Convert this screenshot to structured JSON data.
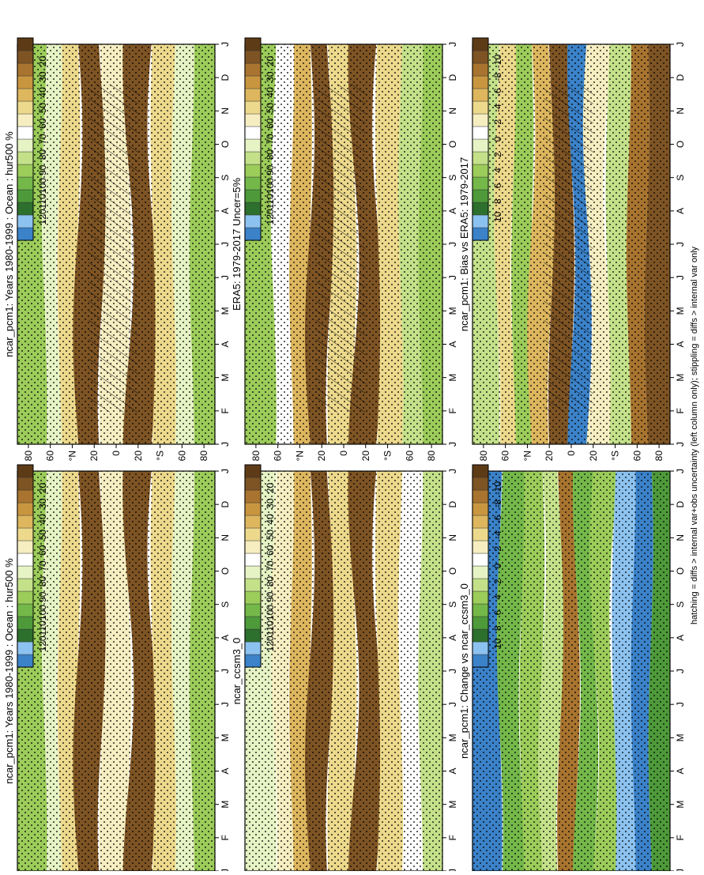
{
  "figure": {
    "footnote": "hatching = diffs > internal var+obs uncertainty (left column only); stippling = diffs > internal var only"
  },
  "palettes": {
    "field": [
      "#3b82c9",
      "#8cc2ef",
      "#2d6f2d",
      "#4e9a3a",
      "#74b84a",
      "#9ccc5a",
      "#c4e18a",
      "#e6f3c4",
      "#ffffff",
      "#f6eec1",
      "#edd98c",
      "#ddb65e",
      "#c99640",
      "#a8742f",
      "#7e5424",
      "#5e3b17"
    ],
    "diff": [
      "#3b82c9",
      "#8cc2ef",
      "#2d6f2d",
      "#4e9a3a",
      "#74b84a",
      "#9ccc5a",
      "#c4e18a",
      "#e6f3c4",
      "#ffffff",
      "#f6eec1",
      "#edd98c",
      "#ddb65e",
      "#c99640",
      "#a8742f",
      "#7e5424",
      "#5e3b17"
    ]
  },
  "chart_data": [
    {
      "id": "panel-model-left",
      "type": "heatmap",
      "title": "ncar_pcm1: Years 1980-1999 : Ocean : hur500 %",
      "x_ticks": [
        "J",
        "F",
        "M",
        "A",
        "M",
        "J",
        "J",
        "A",
        "S",
        "O",
        "N",
        "D",
        "J"
      ],
      "y_ticks": [
        "80",
        "60",
        "°N",
        "20",
        "0",
        "20",
        "°S",
        "60",
        "80"
      ],
      "colorbar_labels": [
        "120",
        "110",
        "100",
        "90",
        "80",
        "70",
        "60",
        "50",
        "40",
        "30",
        "20"
      ],
      "palette": "field",
      "hatching": true,
      "stippling": true,
      "bands": [
        {
          "lat": 72,
          "value": 90,
          "shift": 3
        },
        {
          "lat": 58,
          "value": 72,
          "shift": 4
        },
        {
          "lat": 45,
          "value": 52,
          "shift": 3
        },
        {
          "lat": 25,
          "value": 25,
          "shift": 6
        },
        {
          "lat": 0,
          "value": 60,
          "shift": 4
        },
        {
          "lat": -22,
          "value": 24,
          "shift": 7
        },
        {
          "lat": -45,
          "value": 52,
          "shift": 3
        },
        {
          "lat": -60,
          "value": 74,
          "shift": 3
        },
        {
          "lat": -78,
          "value": 90,
          "shift": 3
        }
      ]
    },
    {
      "id": "panel-model-right",
      "type": "heatmap",
      "title": "ncar_pcm1: Years 1980-1999 : Ocean : hur500 %",
      "x_ticks": [
        "J",
        "F",
        "M",
        "A",
        "M",
        "J",
        "J",
        "A",
        "S",
        "O",
        "N",
        "D",
        "J"
      ],
      "y_ticks": [
        "80",
        "60",
        "°N",
        "20",
        "0",
        "20",
        "°S",
        "60",
        "80"
      ],
      "colorbar_labels": [
        "120",
        "110",
        "100",
        "90",
        "80",
        "70",
        "60",
        "50",
        "40",
        "30",
        "20"
      ],
      "palette": "field",
      "hatching": false,
      "stippling": true,
      "bands": [
        {
          "lat": 72,
          "value": 90,
          "shift": 3
        },
        {
          "lat": 58,
          "value": 72,
          "shift": 4
        },
        {
          "lat": 45,
          "value": 52,
          "shift": 3
        },
        {
          "lat": 25,
          "value": 25,
          "shift": 6
        },
        {
          "lat": 0,
          "value": 60,
          "shift": 4
        },
        {
          "lat": -22,
          "value": 24,
          "shift": 7
        },
        {
          "lat": -45,
          "value": 52,
          "shift": 3
        },
        {
          "lat": -60,
          "value": 74,
          "shift": 3
        },
        {
          "lat": -78,
          "value": 90,
          "shift": 3
        }
      ]
    },
    {
      "id": "panel-era5",
      "type": "heatmap",
      "title": "ERA5: 1979-2017 Uncer=5%",
      "x_ticks": [
        "J",
        "F",
        "M",
        "A",
        "M",
        "J",
        "J",
        "A",
        "S",
        "O",
        "N",
        "D",
        "J"
      ],
      "y_ticks": [
        "80",
        "60",
        "°N",
        "20",
        "0",
        "20",
        "°S",
        "60",
        "80"
      ],
      "colorbar_labels": [
        "120",
        "110",
        "100",
        "90",
        "80",
        "70",
        "60",
        "50",
        "40",
        "30",
        "20"
      ],
      "palette": "field",
      "hatching": true,
      "stippling": true,
      "bands": [
        {
          "lat": 72,
          "value": 92,
          "shift": 3
        },
        {
          "lat": 55,
          "value": 66,
          "shift": 4
        },
        {
          "lat": 40,
          "value": 48,
          "shift": 3
        },
        {
          "lat": 22,
          "value": 26,
          "shift": 6
        },
        {
          "lat": 2,
          "value": 55,
          "shift": 4
        },
        {
          "lat": -20,
          "value": 26,
          "shift": 7
        },
        {
          "lat": -42,
          "value": 50,
          "shift": 3
        },
        {
          "lat": -62,
          "value": 78,
          "shift": 3
        },
        {
          "lat": -78,
          "value": 92,
          "shift": 3
        }
      ]
    },
    {
      "id": "panel-ccsm3",
      "type": "heatmap",
      "title": "ncar_ccsm3_0",
      "x_ticks": [
        "J",
        "F",
        "M",
        "A",
        "M",
        "J",
        "J",
        "A",
        "S",
        "O",
        "N",
        "D",
        "J"
      ],
      "y_ticks": [
        "80",
        "60",
        "°N",
        "20",
        "0",
        "20",
        "°S",
        "60",
        "80"
      ],
      "colorbar_labels": [
        "120",
        "110",
        "100",
        "90",
        "80",
        "70",
        "60",
        "50",
        "40",
        "30",
        "20"
      ],
      "palette": "field",
      "hatching": false,
      "stippling": true,
      "bands": [
        {
          "lat": 72,
          "value": 74,
          "shift": 3
        },
        {
          "lat": 55,
          "value": 58,
          "shift": 4
        },
        {
          "lat": 40,
          "value": 46,
          "shift": 3
        },
        {
          "lat": 22,
          "value": 24,
          "shift": 6
        },
        {
          "lat": 2,
          "value": 54,
          "shift": 4
        },
        {
          "lat": -20,
          "value": 24,
          "shift": 7
        },
        {
          "lat": -42,
          "value": 50,
          "shift": 3
        },
        {
          "lat": -62,
          "value": 70,
          "shift": 3
        },
        {
          "lat": -78,
          "value": 78,
          "shift": 3
        }
      ]
    },
    {
      "id": "panel-bias",
      "type": "heatmap",
      "title": "ncar_pcm1: Bias vs ERA5: 1979-2017",
      "x_ticks": [
        "J",
        "F",
        "M",
        "A",
        "M",
        "J",
        "J",
        "A",
        "S",
        "O",
        "N",
        "D",
        "J"
      ],
      "y_ticks": [
        "80",
        "60",
        "°N",
        "20",
        "0",
        "20",
        "°S",
        "60",
        "80"
      ],
      "colorbar_labels": [
        "10",
        "8",
        "6",
        "4",
        "2",
        "0",
        "-2",
        "-4",
        "-6",
        "-8",
        "-10"
      ],
      "palette": "diff",
      "hatching": true,
      "stippling": true,
      "bands": [
        {
          "lat": 75,
          "value": 2,
          "shift": 3
        },
        {
          "lat": 60,
          "value": -4,
          "shift": 4
        },
        {
          "lat": 45,
          "value": 4,
          "shift": 3
        },
        {
          "lat": 28,
          "value": -6,
          "shift": 5
        },
        {
          "lat": 8,
          "value": -10,
          "shift": 4
        },
        {
          "lat": -8,
          "value": 12,
          "shift": 5
        },
        {
          "lat": -22,
          "value": -2,
          "shift": 6
        },
        {
          "lat": -45,
          "value": 2,
          "shift": 3
        },
        {
          "lat": -60,
          "value": -8,
          "shift": 3
        },
        {
          "lat": -78,
          "value": -10,
          "shift": 3
        }
      ]
    },
    {
      "id": "panel-change",
      "type": "heatmap",
      "title": "ncar_pcm1: Change vs ncar_ccsm3_0",
      "x_ticks": [
        "J",
        "F",
        "M",
        "A",
        "M",
        "J",
        "J",
        "A",
        "S",
        "O",
        "N",
        "D",
        "J"
      ],
      "y_ticks": [
        "80",
        "60",
        "°N",
        "20",
        "0",
        "20",
        "°S",
        "60",
        "80"
      ],
      "colorbar_labels": [
        "10",
        "8",
        "6",
        "4",
        "2",
        "0",
        "-2",
        "-4",
        "-6",
        "-8",
        "-10"
      ],
      "palette": "diff",
      "hatching": false,
      "stippling": true,
      "bands": [
        {
          "lat": 75,
          "value": 12,
          "shift": 3
        },
        {
          "lat": 55,
          "value": 6,
          "shift": 4
        },
        {
          "lat": 35,
          "value": 4,
          "shift": 3
        },
        {
          "lat": 18,
          "value": 2,
          "shift": 5
        },
        {
          "lat": 2,
          "value": -8,
          "shift": 4
        },
        {
          "lat": -12,
          "value": 6,
          "shift": 5
        },
        {
          "lat": -30,
          "value": 4,
          "shift": 6
        },
        {
          "lat": -48,
          "value": 10,
          "shift": 3
        },
        {
          "lat": -65,
          "value": 12,
          "shift": 3
        },
        {
          "lat": -80,
          "value": 8,
          "shift": 3
        }
      ]
    }
  ]
}
